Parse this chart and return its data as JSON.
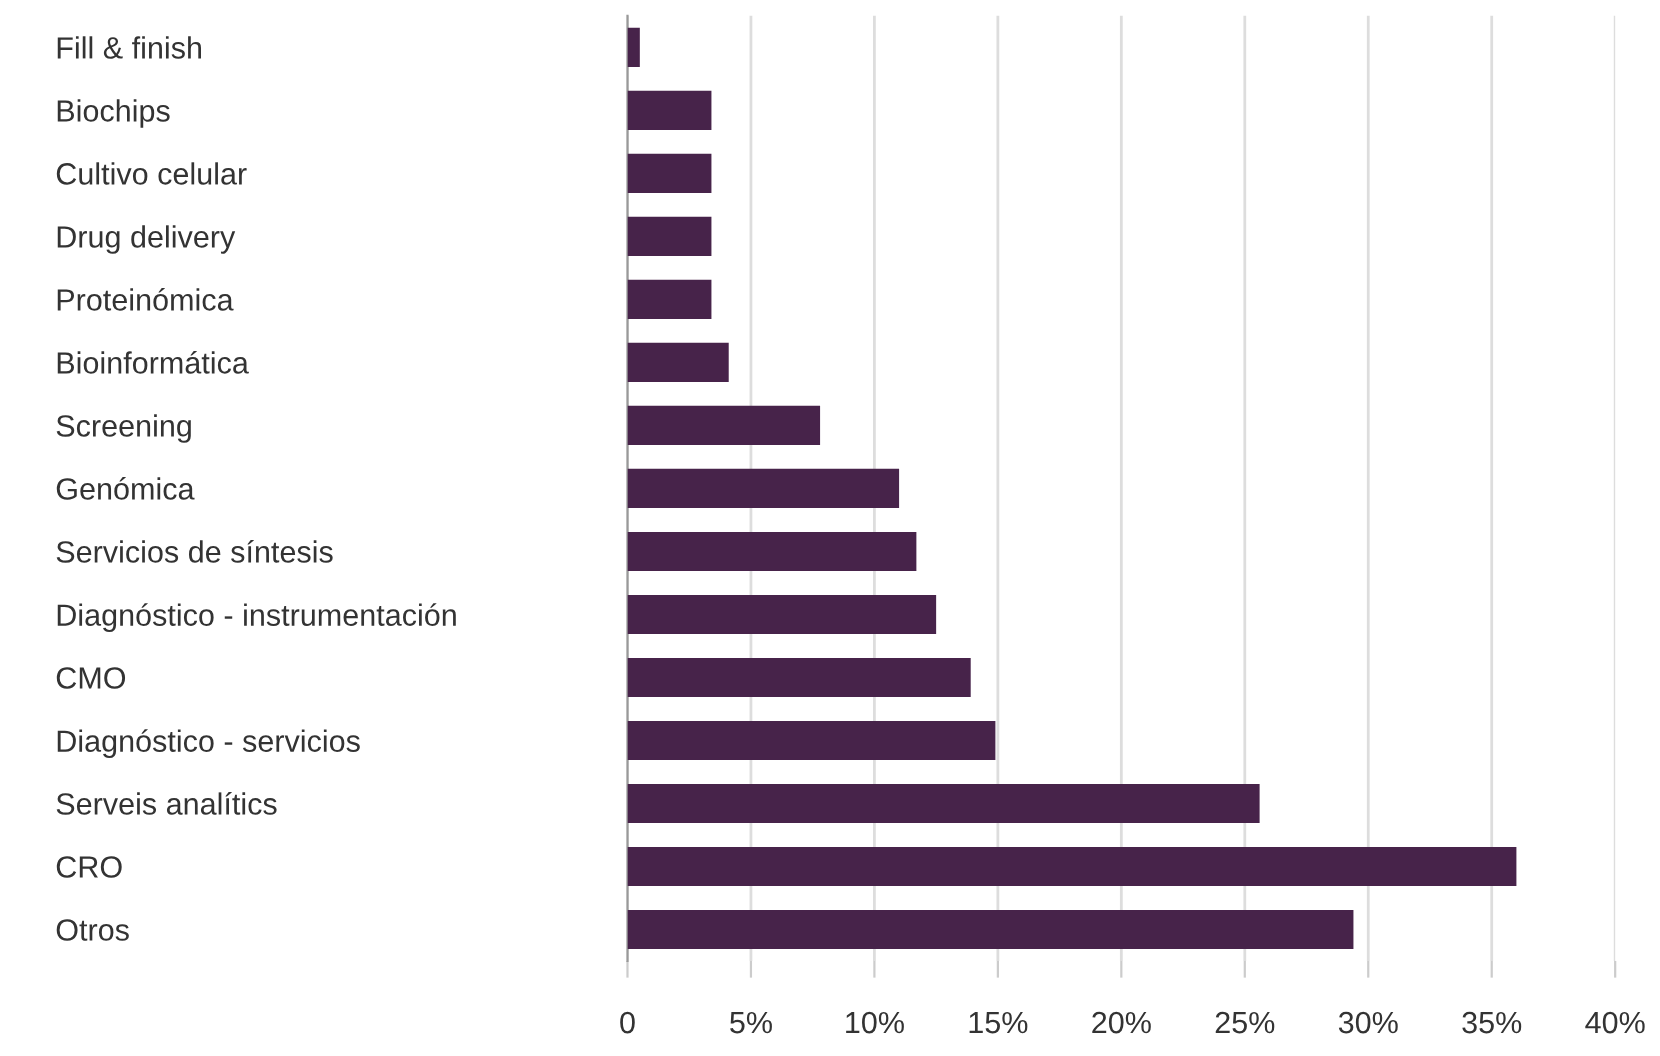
{
  "chart_data": {
    "type": "bar",
    "orientation": "horizontal",
    "categories": [
      "Fill & finish",
      "Biochips",
      "Cultivo celular",
      "Drug delivery",
      "Proteinómica",
      "Bioinformática",
      "Screening",
      "Genómica",
      "Servicios de síntesis",
      "Diagnóstico - instrumentación",
      "CMO",
      "Diagnóstico - servicios",
      "Serveis analítics",
      "CRO",
      "Otros"
    ],
    "values": [
      0.5,
      3.4,
      3.4,
      3.4,
      3.4,
      4.1,
      7.8,
      11.0,
      11.7,
      12.5,
      13.9,
      14.9,
      25.6,
      36.0,
      29.4
    ],
    "color": "#47234a",
    "xlim": [
      0,
      40
    ],
    "xticks": [
      0,
      {
        "value": 5,
        "label": "5%"
      },
      {
        "value": 10,
        "label": "10%"
      },
      {
        "value": 15,
        "label": "15%"
      },
      {
        "value": 20,
        "label": "20%"
      },
      {
        "value": 25,
        "label": "25%"
      },
      {
        "value": 30,
        "label": "30%"
      },
      {
        "value": 35,
        "label": "35%"
      },
      {
        "value": 40,
        "label": "40%"
      }
    ],
    "grid": "x"
  }
}
